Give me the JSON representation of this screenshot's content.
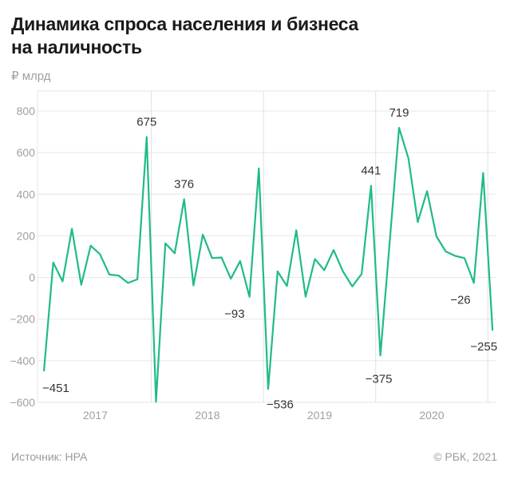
{
  "title_lines": [
    "Динамика спроса населения и бизнеса",
    "на наличность"
  ],
  "unit": "₽ млрд",
  "source": "Источник: НРА",
  "copyright": "© РБК, 2021",
  "chart_data": {
    "type": "line",
    "title": "Динамика спроса населения и бизнеса на наличность",
    "ylabel": "₽ млрд",
    "ylim": [
      -600,
      800
    ],
    "yticks": [
      800,
      600,
      400,
      200,
      0,
      -200,
      -400,
      -600
    ],
    "grid": true,
    "line_color": "#1fbb88",
    "x_range": [
      "2017-01",
      "2021-01"
    ],
    "x_frequency": "monthly",
    "year_labels": [
      "2017",
      "2018",
      "2019",
      "2020"
    ],
    "values": [
      -451,
      72,
      -19,
      234,
      -35,
      153,
      112,
      14,
      9,
      -26,
      -9,
      675,
      -597,
      164,
      116,
      376,
      -38,
      206,
      93,
      96,
      -6,
      79,
      -93,
      524,
      -536,
      29,
      -41,
      227,
      -92,
      89,
      35,
      132,
      29,
      -43,
      17,
      441,
      -375,
      172,
      719,
      573,
      266,
      415,
      198,
      125,
      104,
      93,
      -26,
      502,
      -255
    ],
    "annotations": [
      {
        "index": 0,
        "text": "−451"
      },
      {
        "index": 11,
        "text": "675"
      },
      {
        "index": 15,
        "text": "376"
      },
      {
        "index": 22,
        "text": "−93"
      },
      {
        "index": 24,
        "text": "−536"
      },
      {
        "index": 35,
        "text": "441"
      },
      {
        "index": 36,
        "text": "−375"
      },
      {
        "index": 38,
        "text": "719"
      },
      {
        "index": 46,
        "text": "−26"
      },
      {
        "index": 48,
        "text": "−255"
      }
    ]
  }
}
